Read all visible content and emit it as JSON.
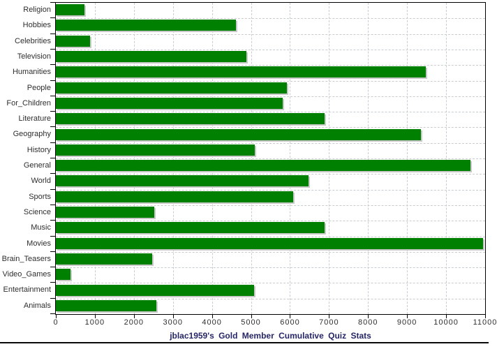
{
  "title": "jblac1959's Gold Member Cumulative Quiz Stats",
  "colors": {
    "bar": "#008000",
    "bar_shadow": "#c9c9c9",
    "grid": "#c9cdd1",
    "axis": "#000000",
    "title_text": "#262666",
    "label_text": "#2e2e2e",
    "background": "#ffffff"
  },
  "chart_data": {
    "type": "bar",
    "orientation": "horizontal",
    "title": "jblac1959's Gold Member Cumulative Quiz Stats",
    "xlabel": "",
    "ylabel": "",
    "xlim": [
      0,
      11000
    ],
    "x_ticks": [
      0,
      1000,
      2000,
      3000,
      4000,
      5000,
      6000,
      7000,
      8000,
      9000,
      10000,
      11000
    ],
    "grid": true,
    "legend": false,
    "categories": [
      "Religion",
      "Hobbies",
      "Celebrities",
      "Television",
      "Humanities",
      "People",
      "For_Children",
      "Literature",
      "Geography",
      "History",
      "General",
      "World",
      "Sports",
      "Science",
      "Music",
      "Movies",
      "Brain_Teasers",
      "Video_Games",
      "Entertainment",
      "Animals"
    ],
    "values": [
      730,
      4620,
      870,
      4890,
      9480,
      5920,
      5820,
      6890,
      9350,
      5100,
      10630,
      6480,
      6080,
      2520,
      6890,
      10950,
      2470,
      370,
      5080,
      2580
    ]
  }
}
